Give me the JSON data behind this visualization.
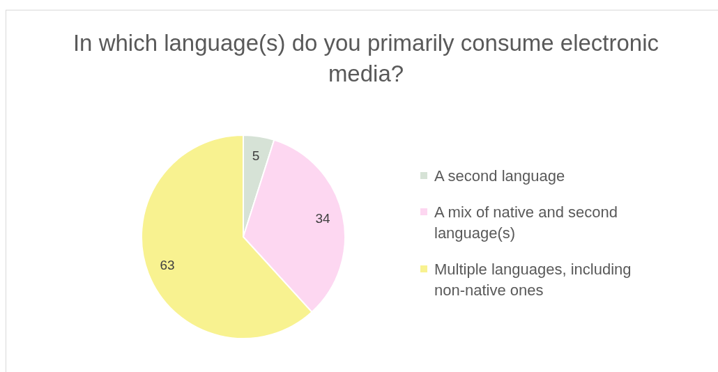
{
  "chart_data": {
    "type": "pie",
    "title": "In which language(s) do you primarily consume electronic media?",
    "categories": [
      "A second language",
      "A mix of native and second language(s)",
      "Multiple languages, including non-native ones"
    ],
    "values": [
      5,
      34,
      63
    ],
    "colors": [
      "#d6e2d6",
      "#fdd7f1",
      "#f8f290"
    ],
    "data_labels": true,
    "legend": "right"
  }
}
